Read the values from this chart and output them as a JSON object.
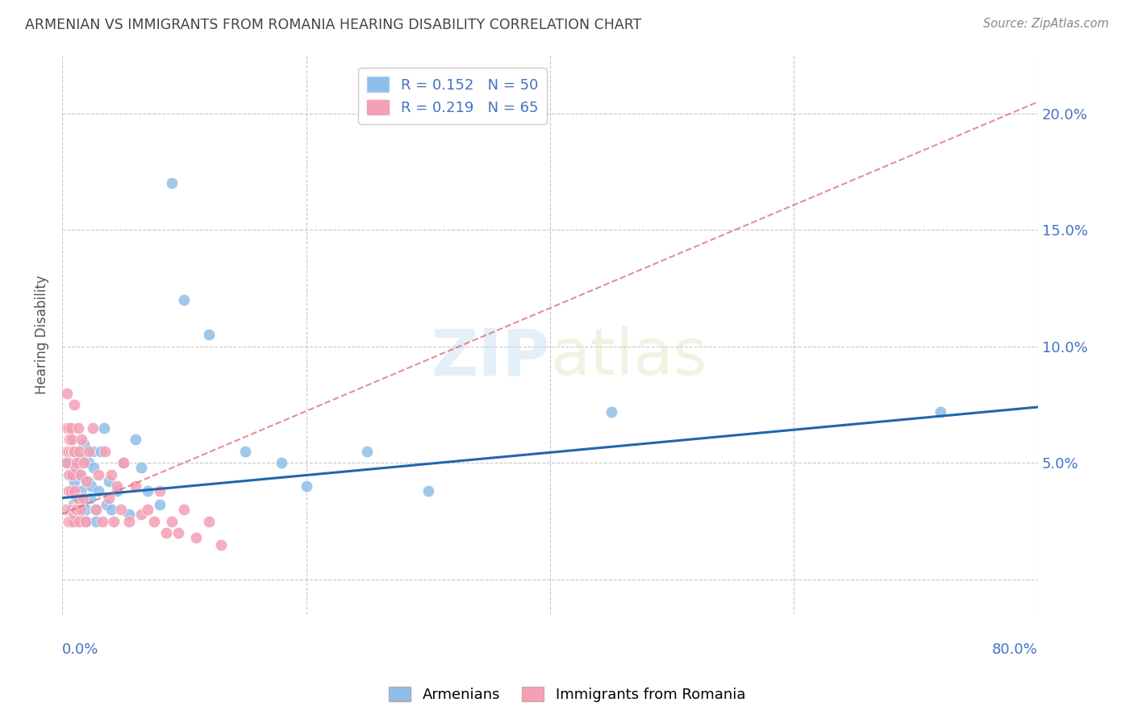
{
  "title": "ARMENIAN VS IMMIGRANTS FROM ROMANIA HEARING DISABILITY CORRELATION CHART",
  "source": "Source: ZipAtlas.com",
  "ylabel": "Hearing Disability",
  "yticks": [
    0.0,
    0.05,
    0.1,
    0.15,
    0.2
  ],
  "ytick_labels": [
    "",
    "5.0%",
    "10.0%",
    "15.0%",
    "20.0%"
  ],
  "xlim": [
    0.0,
    0.8
  ],
  "ylim": [
    -0.015,
    0.225
  ],
  "legend_label1": "Armenians",
  "legend_label2": "Immigrants from Romania",
  "watermark": "ZIPatlas",
  "blue_color": "#8fbfe8",
  "pink_color": "#f4a0b5",
  "blue_line_color": "#2166ac",
  "pink_line_color": "#d9687a",
  "axis_label_color": "#4472c4",
  "title_color": "#444444",
  "blue_trendline": [
    0.035,
    0.074
  ],
  "pink_trendline": [
    0.028,
    0.205
  ],
  "armenians_x": [
    0.005,
    0.005,
    0.007,
    0.007,
    0.008,
    0.009,
    0.01,
    0.01,
    0.01,
    0.011,
    0.012,
    0.013,
    0.014,
    0.015,
    0.015,
    0.017,
    0.018,
    0.019,
    0.02,
    0.021,
    0.022,
    0.023,
    0.024,
    0.025,
    0.026,
    0.027,
    0.028,
    0.03,
    0.032,
    0.034,
    0.036,
    0.038,
    0.04,
    0.045,
    0.05,
    0.055,
    0.06,
    0.065,
    0.07,
    0.08,
    0.09,
    0.1,
    0.12,
    0.15,
    0.18,
    0.2,
    0.25,
    0.3,
    0.45,
    0.72
  ],
  "armenians_y": [
    0.045,
    0.05,
    0.03,
    0.038,
    0.025,
    0.032,
    0.038,
    0.028,
    0.042,
    0.048,
    0.035,
    0.028,
    0.045,
    0.038,
    0.052,
    0.032,
    0.058,
    0.03,
    0.025,
    0.042,
    0.05,
    0.035,
    0.04,
    0.055,
    0.048,
    0.03,
    0.025,
    0.038,
    0.055,
    0.065,
    0.032,
    0.042,
    0.03,
    0.038,
    0.05,
    0.028,
    0.06,
    0.048,
    0.038,
    0.032,
    0.17,
    0.12,
    0.105,
    0.055,
    0.05,
    0.04,
    0.055,
    0.038,
    0.072,
    0.072
  ],
  "romania_x": [
    0.003,
    0.003,
    0.004,
    0.004,
    0.004,
    0.005,
    0.005,
    0.005,
    0.005,
    0.006,
    0.006,
    0.006,
    0.007,
    0.007,
    0.007,
    0.007,
    0.008,
    0.008,
    0.008,
    0.009,
    0.009,
    0.01,
    0.01,
    0.01,
    0.01,
    0.011,
    0.011,
    0.012,
    0.012,
    0.013,
    0.013,
    0.014,
    0.014,
    0.015,
    0.015,
    0.016,
    0.017,
    0.018,
    0.019,
    0.02,
    0.022,
    0.025,
    0.028,
    0.03,
    0.033,
    0.035,
    0.038,
    0.04,
    0.042,
    0.045,
    0.048,
    0.05,
    0.055,
    0.06,
    0.065,
    0.07,
    0.075,
    0.08,
    0.085,
    0.09,
    0.095,
    0.1,
    0.11,
    0.12,
    0.13
  ],
  "romania_y": [
    0.03,
    0.05,
    0.055,
    0.065,
    0.08,
    0.025,
    0.038,
    0.055,
    0.065,
    0.03,
    0.045,
    0.06,
    0.025,
    0.038,
    0.055,
    0.065,
    0.03,
    0.045,
    0.06,
    0.025,
    0.055,
    0.028,
    0.038,
    0.055,
    0.075,
    0.03,
    0.048,
    0.03,
    0.05,
    0.035,
    0.065,
    0.025,
    0.055,
    0.03,
    0.045,
    0.06,
    0.035,
    0.05,
    0.025,
    0.042,
    0.055,
    0.065,
    0.03,
    0.045,
    0.025,
    0.055,
    0.035,
    0.045,
    0.025,
    0.04,
    0.03,
    0.05,
    0.025,
    0.04,
    0.028,
    0.03,
    0.025,
    0.038,
    0.02,
    0.025,
    0.02,
    0.03,
    0.018,
    0.025,
    0.015
  ]
}
